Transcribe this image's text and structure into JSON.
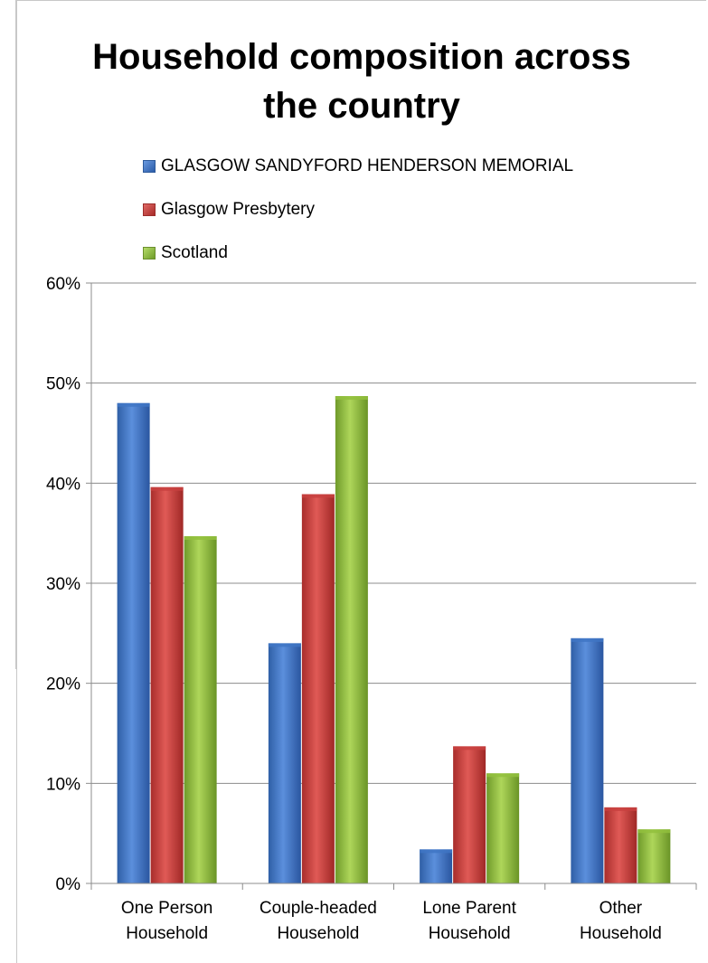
{
  "chart_data": {
    "type": "bar",
    "title_lines": [
      "Household composition across",
      "the country"
    ],
    "categories": [
      [
        "One Person",
        "Household"
      ],
      [
        "Couple-headed",
        "Household"
      ],
      [
        "Lone Parent",
        "Household"
      ],
      [
        "Other",
        "Household"
      ]
    ],
    "series": [
      {
        "name": "GLASGOW SANDYFORD HENDERSON MEMORIAL",
        "color": "#3f75c4",
        "values": [
          48.0,
          24.0,
          3.4,
          24.5
        ]
      },
      {
        "name": "Glasgow Presbytery",
        "color": "#c8413f",
        "values": [
          39.6,
          38.9,
          13.7,
          7.6
        ]
      },
      {
        "name": "Scotland",
        "color": "#92bf3d",
        "values": [
          34.7,
          48.7,
          11.0,
          5.4
        ]
      }
    ],
    "ylim": [
      0,
      60
    ],
    "yticks": [
      0,
      10,
      20,
      30,
      40,
      50,
      60
    ],
    "ytick_labels": [
      "0%",
      "10%",
      "20%",
      "30%",
      "40%",
      "50%",
      "60%"
    ],
    "grid": true,
    "legend_position": "top"
  }
}
